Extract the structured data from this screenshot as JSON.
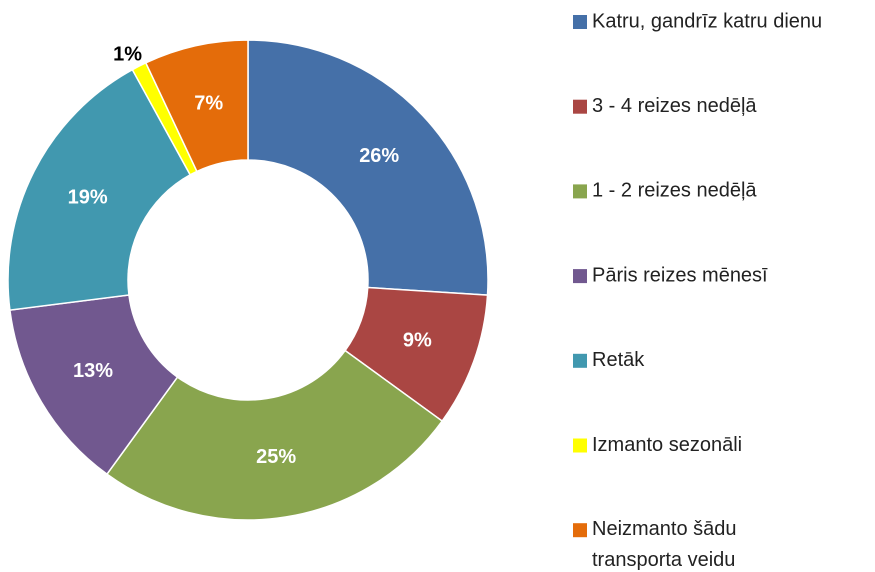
{
  "chart_data": {
    "type": "donut",
    "categories": [
      "Katru, gandrīz katru dienu",
      "3 - 4 reizes nedēļā",
      "1 - 2 reizes nedēļā",
      "Pāris reizes mēnesī",
      "Retāk",
      "Izmanto sezonāli",
      "Neizmanto šādu transporta veidu"
    ],
    "values": [
      26,
      9,
      25,
      13,
      19,
      1,
      7
    ],
    "value_labels": [
      "26%",
      "9%",
      "25%",
      "13%",
      "19%",
      "1%",
      "7%"
    ],
    "colors": [
      "#4570a8",
      "#aa4643",
      "#89a54e",
      "#71588f",
      "#4198af",
      "#ffff00",
      "#e46c0a"
    ],
    "legend": "right"
  }
}
